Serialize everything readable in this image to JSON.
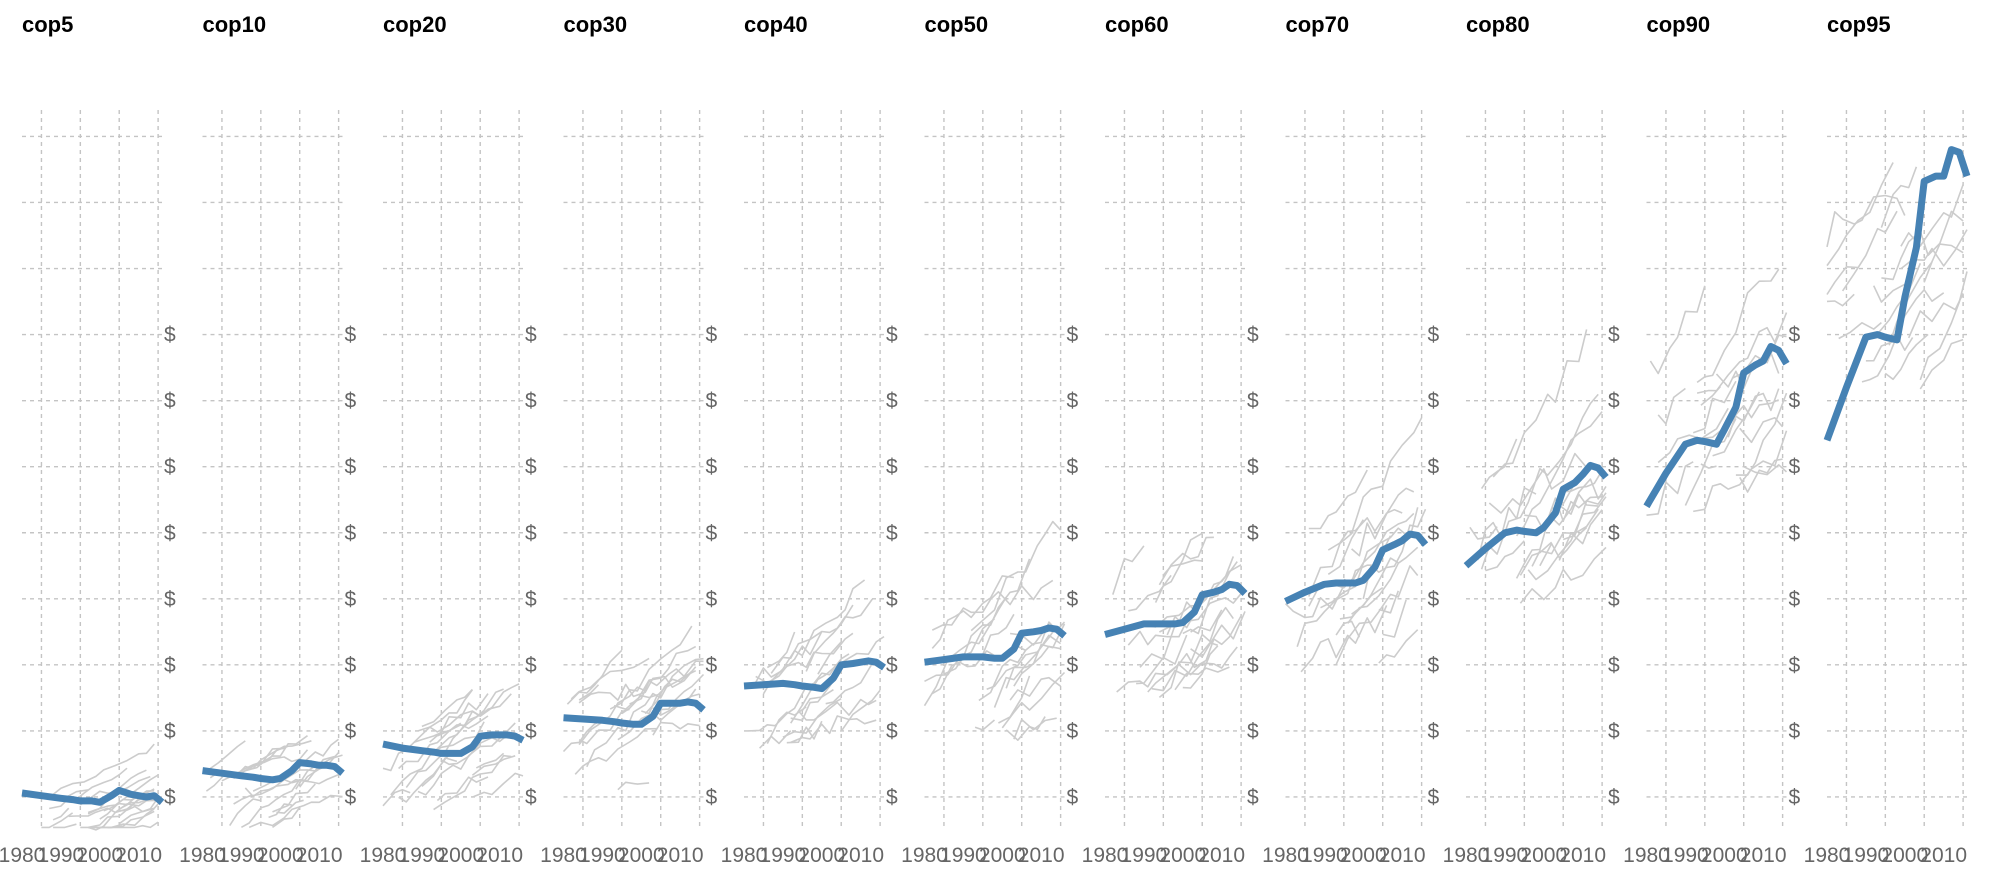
{
  "colors": {
    "highlight": "#4682b4",
    "background_series": "#cccccc",
    "grid": "#c4c4c4",
    "tick_text": "#666666"
  },
  "chart_data": {
    "type": "line",
    "layout": "small-multiples",
    "grid": true,
    "xlim": [
      1980,
      2016
    ],
    "ylim": [
      -0.25,
      5.2
    ],
    "x_tick_labels": [
      "1980",
      "1990",
      "2000",
      "2010"
    ],
    "y_tick_labels": [
      "$",
      "$",
      "$",
      "$",
      "$",
      "$",
      "$",
      "$"
    ],
    "x": [
      1980,
      1985,
      1990,
      1993,
      1995,
      1998,
      2000,
      2003,
      2005,
      2008,
      2010,
      2012,
      2014,
      2016
    ],
    "panels": [
      {
        "title": "cop5",
        "values": [
          0.03,
          0.01,
          -0.01,
          -0.02,
          -0.03,
          -0.03,
          -0.04,
          0.01,
          0.05,
          0.02,
          0.01,
          0.0,
          0.01,
          -0.04
        ]
      },
      {
        "title": "cop10",
        "values": [
          0.2,
          0.18,
          0.16,
          0.15,
          0.14,
          0.13,
          0.14,
          0.2,
          0.26,
          0.25,
          0.24,
          0.24,
          0.23,
          0.18
        ]
      },
      {
        "title": "cop20",
        "values": [
          0.4,
          0.37,
          0.35,
          0.34,
          0.33,
          0.33,
          0.33,
          0.38,
          0.46,
          0.47,
          0.47,
          0.47,
          0.46,
          0.43
        ]
      },
      {
        "title": "cop30",
        "values": [
          0.6,
          0.59,
          0.58,
          0.57,
          0.56,
          0.55,
          0.55,
          0.61,
          0.71,
          0.71,
          0.71,
          0.72,
          0.71,
          0.66
        ]
      },
      {
        "title": "cop40",
        "values": [
          0.84,
          0.85,
          0.86,
          0.85,
          0.84,
          0.83,
          0.82,
          0.9,
          1.0,
          1.01,
          1.02,
          1.03,
          1.02,
          0.98
        ]
      },
      {
        "title": "cop50",
        "values": [
          1.02,
          1.04,
          1.06,
          1.06,
          1.06,
          1.05,
          1.05,
          1.12,
          1.24,
          1.25,
          1.26,
          1.28,
          1.27,
          1.22
        ]
      },
      {
        "title": "cop60",
        "values": [
          1.23,
          1.27,
          1.31,
          1.31,
          1.31,
          1.31,
          1.32,
          1.4,
          1.53,
          1.55,
          1.57,
          1.61,
          1.6,
          1.54
        ]
      },
      {
        "title": "cop70",
        "values": [
          1.48,
          1.55,
          1.61,
          1.62,
          1.62,
          1.62,
          1.64,
          1.74,
          1.87,
          1.91,
          1.94,
          1.99,
          1.98,
          1.91
        ]
      },
      {
        "title": "cop80",
        "values": [
          1.75,
          1.88,
          2.0,
          2.02,
          2.01,
          2.0,
          2.04,
          2.15,
          2.33,
          2.38,
          2.44,
          2.51,
          2.49,
          2.42
        ]
      },
      {
        "title": "cop90",
        "values": [
          2.2,
          2.45,
          2.67,
          2.7,
          2.69,
          2.67,
          2.78,
          2.95,
          3.21,
          3.27,
          3.3,
          3.41,
          3.38,
          3.28
        ]
      },
      {
        "title": "cop95",
        "values": [
          2.7,
          3.1,
          3.48,
          3.5,
          3.48,
          3.46,
          3.78,
          4.16,
          4.66,
          4.7,
          4.7,
          4.9,
          4.88,
          4.7
        ]
      }
    ]
  }
}
